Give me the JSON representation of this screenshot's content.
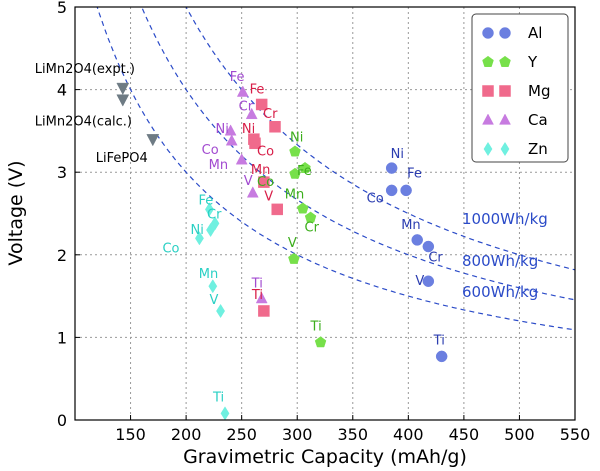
{
  "chart_data": {
    "type": "scatter",
    "title": "",
    "xlabel": "Gravimetric Capacity (mAh/g)",
    "ylabel": "Voltage (V)",
    "xlim": [
      100,
      550
    ],
    "ylim": [
      0,
      5
    ],
    "xticks": [
      150,
      200,
      250,
      300,
      350,
      400,
      450,
      500,
      550
    ],
    "yticks": [
      0,
      1,
      2,
      3,
      4,
      5
    ],
    "grid": true,
    "legend_position": "top-right",
    "series": [
      {
        "name": "Al",
        "marker": "circle",
        "color": "#6b7fe0",
        "label_color": "#2b3db0",
        "points": [
          {
            "label": "Ni",
            "x": 385,
            "y": 3.05
          },
          {
            "label": "Fe",
            "x": 398,
            "y": 2.78
          },
          {
            "label": "Co",
            "x": 385,
            "y": 2.78
          },
          {
            "label": "Mn",
            "x": 408,
            "y": 2.18
          },
          {
            "label": "Cr",
            "x": 418,
            "y": 2.1
          },
          {
            "label": "V",
            "x": 418,
            "y": 1.68
          },
          {
            "label": "Ti",
            "x": 430,
            "y": 0.77
          }
        ]
      },
      {
        "name": "Y",
        "marker": "pentagon",
        "color": "#77e04a",
        "label_color": "#3cae1c",
        "points": [
          {
            "label": "Ni",
            "x": 298,
            "y": 3.25
          },
          {
            "label": "Fe",
            "x": 307,
            "y": 3.05
          },
          {
            "label": "Co",
            "x": 298,
            "y": 2.98
          },
          {
            "label": "Mn",
            "x": 305,
            "y": 2.56
          },
          {
            "label": "Cr",
            "x": 312,
            "y": 2.45
          },
          {
            "label": "V",
            "x": 297,
            "y": 1.95
          },
          {
            "label": "Ti",
            "x": 321,
            "y": 0.94
          }
        ]
      },
      {
        "name": "Mg",
        "marker": "square",
        "color": "#f06a8c",
        "label_color": "#d81e48",
        "points": [
          {
            "label": "Fe",
            "x": 268,
            "y": 3.82
          },
          {
            "label": "Cr",
            "x": 280,
            "y": 3.55
          },
          {
            "label": "Ni",
            "x": 261,
            "y": 3.4
          },
          {
            "label": "Co",
            "x": 262,
            "y": 3.35
          },
          {
            "label": "Mn",
            "x": 270,
            "y": 2.88
          },
          {
            "label": "V",
            "x": 282,
            "y": 2.55
          },
          {
            "label": "Ti",
            "x": 270,
            "y": 1.32
          }
        ]
      },
      {
        "name": "Ca",
        "marker": "triangle",
        "color": "#c77be0",
        "label_color": "#a24ad0",
        "points": [
          {
            "label": "Fe",
            "x": 251,
            "y": 3.97
          },
          {
            "label": "Cr",
            "x": 259,
            "y": 3.7
          },
          {
            "label": "Ni",
            "x": 240,
            "y": 3.5
          },
          {
            "label": "Co",
            "x": 241,
            "y": 3.38
          },
          {
            "label": "Mn",
            "x": 250,
            "y": 3.15
          },
          {
            "label": "V",
            "x": 260,
            "y": 2.75
          },
          {
            "label": "Ti",
            "x": 268,
            "y": 1.47
          }
        ]
      },
      {
        "name": "Zn",
        "marker": "diamond",
        "color": "#6ff0e0",
        "label_color": "#2ad0c4",
        "points": [
          {
            "label": "Fe",
            "x": 221,
            "y": 2.55
          },
          {
            "label": "Cr",
            "x": 226,
            "y": 2.38
          },
          {
            "label": "Ni",
            "x": 222,
            "y": 2.3
          },
          {
            "label": "Co",
            "x": 212,
            "y": 2.2
          },
          {
            "label": "Mn",
            "x": 224,
            "y": 1.62
          },
          {
            "label": "V",
            "x": 231,
            "y": 1.32
          },
          {
            "label": "Ti",
            "x": 235,
            "y": 0.08
          }
        ]
      }
    ],
    "reference_points": [
      {
        "label": "LiMn2O4(expt.)",
        "x": 143,
        "y": 4.02
      },
      {
        "label": "LiMn2O4(calc.)",
        "x": 143,
        "y": 3.88
      },
      {
        "label": "LiFePO4",
        "x": 170,
        "y": 3.4
      }
    ],
    "reference_color": "#6e7b84",
    "energy_curves": [
      {
        "label": "1000Wh/kg",
        "energy": 1000
      },
      {
        "label": "800Wh/kg",
        "energy": 800
      },
      {
        "label": "600Wh/kg",
        "energy": 600
      }
    ],
    "curve_color": "#2b4bc8"
  }
}
